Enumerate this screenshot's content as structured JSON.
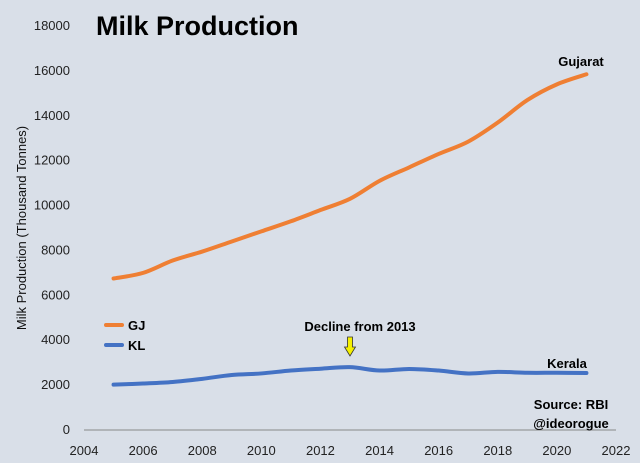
{
  "chart_data": {
    "type": "line",
    "title": "Milk Production",
    "ylabel": "Milk Production (Thousand Tonnes)",
    "xlabel": "",
    "xlim": [
      2004,
      2022
    ],
    "ylim": [
      0,
      18000
    ],
    "x_ticks": [
      "2004",
      "2006",
      "2008",
      "2010",
      "2012",
      "2014",
      "2016",
      "2018",
      "2020",
      "2022"
    ],
    "y_ticks": [
      "0",
      "2000",
      "4000",
      "6000",
      "8000",
      "10000",
      "12000",
      "14000",
      "16000",
      "18000"
    ],
    "grid": false,
    "legend_position": "left",
    "series": [
      {
        "name": "GJ",
        "label": "Gujarat",
        "color": "#ef7f33",
        "x": [
          2005,
          2006,
          2007,
          2008,
          2009,
          2010,
          2011,
          2012,
          2013,
          2014,
          2015,
          2016,
          2017,
          2018,
          2019,
          2020,
          2021
        ],
        "values": [
          6750,
          7000,
          7550,
          7950,
          8400,
          8850,
          9300,
          9800,
          10300,
          11100,
          11700,
          12300,
          12850,
          13700,
          14700,
          15400,
          15850
        ]
      },
      {
        "name": "KL",
        "label": "Kerala",
        "color": "#4472c4",
        "x": [
          2005,
          2006,
          2007,
          2008,
          2009,
          2010,
          2011,
          2012,
          2013,
          2014,
          2015,
          2016,
          2017,
          2018,
          2019,
          2020,
          2021
        ],
        "values": [
          2020,
          2070,
          2140,
          2280,
          2450,
          2520,
          2650,
          2730,
          2800,
          2650,
          2720,
          2650,
          2520,
          2590,
          2550,
          2550,
          2540
        ]
      }
    ],
    "annotations": {
      "decline": "Decline from 2013",
      "source": "Source: RBI",
      "handle": "@ideorogue"
    }
  }
}
